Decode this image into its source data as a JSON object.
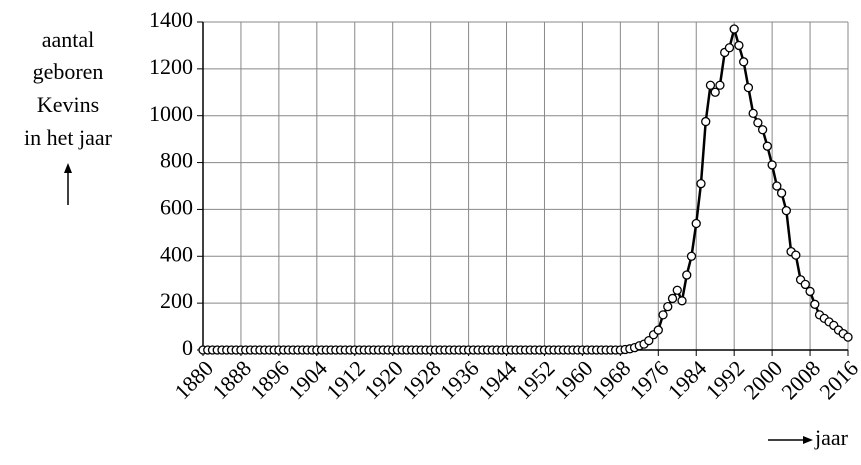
{
  "chart_data": {
    "type": "line",
    "y_label": [
      "aantal",
      "geboren",
      "Kevins",
      "in het jaar"
    ],
    "x_label": "jaar",
    "x": [
      1880,
      1881,
      1882,
      1883,
      1884,
      1885,
      1886,
      1887,
      1888,
      1889,
      1890,
      1891,
      1892,
      1893,
      1894,
      1895,
      1896,
      1897,
      1898,
      1899,
      1900,
      1901,
      1902,
      1903,
      1904,
      1905,
      1906,
      1907,
      1908,
      1909,
      1910,
      1911,
      1912,
      1913,
      1914,
      1915,
      1916,
      1917,
      1918,
      1919,
      1920,
      1921,
      1922,
      1923,
      1924,
      1925,
      1926,
      1927,
      1928,
      1929,
      1930,
      1931,
      1932,
      1933,
      1934,
      1935,
      1936,
      1937,
      1938,
      1939,
      1940,
      1941,
      1942,
      1943,
      1944,
      1945,
      1946,
      1947,
      1948,
      1949,
      1950,
      1951,
      1952,
      1953,
      1954,
      1955,
      1956,
      1957,
      1958,
      1959,
      1960,
      1961,
      1962,
      1963,
      1964,
      1965,
      1966,
      1967,
      1968,
      1969,
      1970,
      1971,
      1972,
      1973,
      1974,
      1975,
      1976,
      1977,
      1978,
      1979,
      1980,
      1981,
      1982,
      1983,
      1984,
      1985,
      1986,
      1987,
      1988,
      1989,
      1990,
      1991,
      1992,
      1993,
      1994,
      1995,
      1996,
      1997,
      1998,
      1999,
      2000,
      2001,
      2002,
      2003,
      2004,
      2005,
      2006,
      2007,
      2008,
      2009,
      2010,
      2011,
      2012,
      2013,
      2014,
      2015,
      2016
    ],
    "values": [
      0,
      0,
      0,
      0,
      0,
      0,
      0,
      0,
      0,
      0,
      0,
      0,
      0,
      0,
      0,
      0,
      0,
      0,
      0,
      0,
      0,
      0,
      0,
      0,
      0,
      0,
      0,
      0,
      0,
      0,
      0,
      0,
      0,
      0,
      0,
      0,
      0,
      0,
      0,
      0,
      0,
      0,
      0,
      0,
      0,
      0,
      0,
      0,
      0,
      0,
      0,
      0,
      0,
      0,
      0,
      0,
      0,
      0,
      0,
      0,
      0,
      0,
      0,
      0,
      0,
      0,
      0,
      0,
      0,
      0,
      0,
      0,
      0,
      0,
      0,
      0,
      0,
      0,
      0,
      0,
      0,
      0,
      0,
      0,
      0,
      0,
      0,
      0,
      0,
      2,
      5,
      10,
      18,
      25,
      40,
      65,
      85,
      150,
      185,
      220,
      255,
      210,
      320,
      400,
      540,
      710,
      975,
      1130,
      1100,
      1130,
      1270,
      1290,
      1370,
      1300,
      1230,
      1120,
      1010,
      970,
      940,
      870,
      790,
      700,
      670,
      595,
      420,
      405,
      300,
      280,
      250,
      195,
      150,
      135,
      120,
      105,
      85,
      70,
      55
    ],
    "color": "#000000",
    "xlim": [
      1880,
      2016
    ],
    "xticks": [
      1880,
      1888,
      1896,
      1904,
      1912,
      1920,
      1928,
      1936,
      1944,
      1952,
      1960,
      1968,
      1976,
      1984,
      1992,
      2000,
      2008,
      2016
    ],
    "ylim": [
      0,
      1400
    ],
    "yticks": [
      0,
      200,
      400,
      600,
      800,
      1000,
      1200,
      1400
    ],
    "grid": true
  }
}
